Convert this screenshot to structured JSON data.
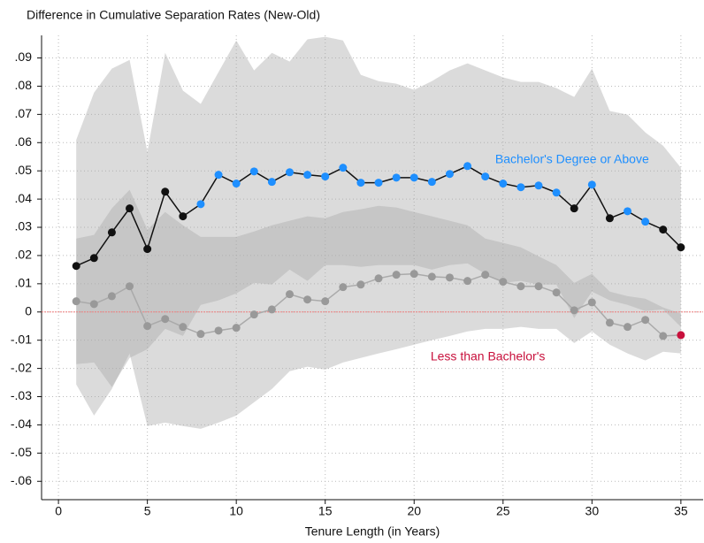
{
  "chart_data": {
    "type": "line",
    "title": "Difference in Cumulative Separation Rates (New-Old)",
    "x_label": "Tenure Length (in Years)",
    "x": [
      1,
      2,
      3,
      4,
      5,
      6,
      7,
      8,
      9,
      10,
      11,
      12,
      13,
      14,
      15,
      16,
      17,
      18,
      19,
      20,
      21,
      22,
      23,
      24,
      25,
      26,
      27,
      28,
      29,
      30,
      31,
      32,
      33,
      34,
      35
    ],
    "xlim": [
      -0.95,
      36.25
    ],
    "xticks": [
      0,
      5,
      10,
      15,
      20,
      25,
      30,
      35
    ],
    "ylim": [
      -0.0665,
      0.098
    ],
    "yticks": [
      {
        "value": 0.09,
        "label": ".09"
      },
      {
        "value": 0.08,
        "label": ".08"
      },
      {
        "value": 0.07,
        "label": ".07"
      },
      {
        "value": 0.06,
        "label": ".06"
      },
      {
        "value": 0.05,
        "label": ".05"
      },
      {
        "value": 0.04,
        "label": ".04"
      },
      {
        "value": 0.03,
        "label": ".03"
      },
      {
        "value": 0.02,
        "label": ".02"
      },
      {
        "value": 0.01,
        "label": ".01"
      },
      0,
      {
        "value": -0.01,
        "label": "-.01"
      },
      {
        "value": -0.02,
        "label": "-.02"
      },
      {
        "value": -0.03,
        "label": "-.03"
      },
      {
        "value": -0.04,
        "label": "-.04"
      },
      {
        "value": -0.05,
        "label": "-.05"
      },
      {
        "value": -0.06,
        "label": "-.06"
      }
    ],
    "grid": true,
    "reference_line": {
      "value": 0,
      "color": "#f08080"
    },
    "band_color": "#aaaaaa",
    "series": [
      {
        "name": "Bachelor's Degree or Above",
        "color": "#1e8fff",
        "line_color": "#111111",
        "point_colors": [
          "#111111",
          "#111111",
          "#111111",
          "#111111",
          "#111111",
          "#111111",
          "#111111",
          "#1e8fff",
          "#1e8fff",
          "#1e8fff",
          "#1e8fff",
          "#1e8fff",
          "#1e8fff",
          "#1e8fff",
          "#1e8fff",
          "#1e8fff",
          "#1e8fff",
          "#1e8fff",
          "#1e8fff",
          "#1e8fff",
          "#1e8fff",
          "#1e8fff",
          "#1e8fff",
          "#1e8fff",
          "#1e8fff",
          "#1e8fff",
          "#1e8fff",
          "#1e8fff",
          "#111111",
          "#1e8fff",
          "#111111",
          "#1e8fff",
          "#1e8fff",
          "#111111",
          "#111111"
        ],
        "values": [
          0.0163,
          0.0191,
          0.0282,
          0.0367,
          0.0223,
          0.0426,
          0.0339,
          0.0382,
          0.0486,
          0.0455,
          0.0498,
          0.0461,
          0.0495,
          0.0486,
          0.048,
          0.0511,
          0.0458,
          0.0458,
          0.0476,
          0.0476,
          0.0461,
          0.0489,
          0.0517,
          0.048,
          0.0455,
          0.0442,
          0.0448,
          0.0423,
          0.0367,
          0.0451,
          0.0332,
          0.0357,
          0.032,
          0.0292,
          0.0229
        ],
        "ci_upper": [
          0.061,
          0.0777,
          0.0862,
          0.0893,
          0.0567,
          0.0918,
          0.0784,
          0.0737,
          0.085,
          0.0962,
          0.0856,
          0.0918,
          0.0887,
          0.0966,
          0.0975,
          0.0962,
          0.084,
          0.0818,
          0.0809,
          0.0787,
          0.0818,
          0.0856,
          0.0881,
          0.0856,
          0.0831,
          0.0815,
          0.0815,
          0.0793,
          0.0762,
          0.0862,
          0.0712,
          0.0699,
          0.0636,
          0.0589,
          0.0511
        ],
        "ci_lower": [
          -0.0185,
          -0.0179,
          -0.0266,
          -0.0163,
          -0.0132,
          -0.006,
          -0.0085,
          0.0025,
          0.0041,
          0.0066,
          0.0103,
          0.0097,
          0.015,
          0.011,
          0.0166,
          0.0166,
          0.016,
          0.0166,
          0.0166,
          0.0166,
          0.015,
          0.0166,
          0.0172,
          0.0135,
          0.0103,
          0.011,
          0.0097,
          0.0097,
          -0.0022,
          0.0072,
          0.0041,
          0.0025,
          0.0003,
          0.0009,
          -0.0053
        ]
      },
      {
        "name": "Less than Bachelor's",
        "color": "#c8103c",
        "line_color": "#aaaaaa",
        "point_colors": [
          "#999999",
          "#999999",
          "#999999",
          "#999999",
          "#999999",
          "#999999",
          "#999999",
          "#999999",
          "#999999",
          "#999999",
          "#999999",
          "#999999",
          "#999999",
          "#999999",
          "#999999",
          "#999999",
          "#999999",
          "#999999",
          "#999999",
          "#999999",
          "#999999",
          "#999999",
          "#999999",
          "#999999",
          "#999999",
          "#999999",
          "#999999",
          "#999999",
          "#999999",
          "#999999",
          "#999999",
          "#999999",
          "#999999",
          "#999999",
          "#c8103c"
        ],
        "values": [
          0.0038,
          0.0028,
          0.0056,
          0.0091,
          -0.005,
          -0.0025,
          -0.0053,
          -0.0078,
          -0.0066,
          -0.0056,
          -0.0009,
          0.0009,
          0.0063,
          0.0044,
          0.0038,
          0.0088,
          0.0097,
          0.0119,
          0.0132,
          0.0135,
          0.0125,
          0.0122,
          0.011,
          0.0132,
          0.0107,
          0.0091,
          0.0091,
          0.0069,
          0.0006,
          0.0034,
          -0.0038,
          -0.0053,
          -0.0028,
          -0.0085,
          -0.0082
        ],
        "ci_upper": [
          0.026,
          0.0273,
          0.0367,
          0.0433,
          0.0292,
          0.0354,
          0.0307,
          0.0266,
          0.0266,
          0.0266,
          0.0285,
          0.0307,
          0.0323,
          0.0339,
          0.0332,
          0.0354,
          0.0364,
          0.0376,
          0.037,
          0.0354,
          0.0339,
          0.0323,
          0.0307,
          0.026,
          0.0245,
          0.0229,
          0.0197,
          0.0166,
          0.0103,
          0.0135,
          0.0072,
          0.0056,
          0.0047,
          0.0016,
          -0.0006
        ],
        "ci_lower": [
          -0.0257,
          -0.0367,
          -0.0273,
          -0.0147,
          -0.0404,
          -0.0392,
          -0.0404,
          -0.0414,
          -0.0392,
          -0.0367,
          -0.032,
          -0.0273,
          -0.021,
          -0.0194,
          -0.0204,
          -0.0179,
          -0.0163,
          -0.0147,
          -0.0132,
          -0.0116,
          -0.01,
          -0.0085,
          -0.0069,
          -0.006,
          -0.006,
          -0.0053,
          -0.006,
          -0.006,
          -0.011,
          -0.0069,
          -0.0116,
          -0.0147,
          -0.0172,
          -0.0141,
          -0.0147
        ]
      }
    ]
  }
}
